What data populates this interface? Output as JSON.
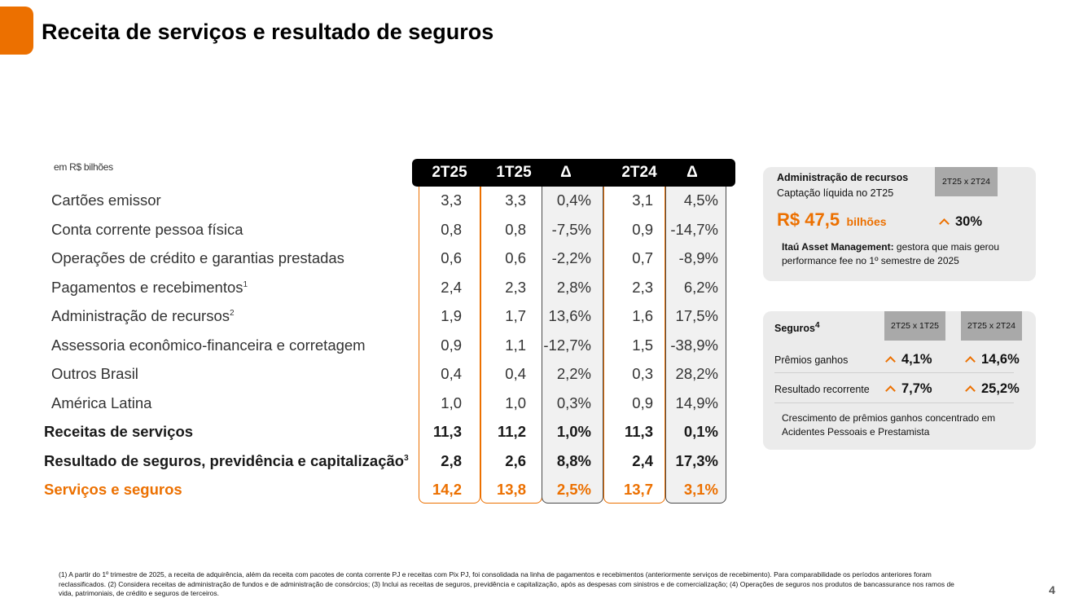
{
  "title": "Receita de serviços e resultado de seguros",
  "units": "em R$ bilhões",
  "columns": [
    "2T25",
    "1T25",
    "Δ",
    "2T24",
    "Δ"
  ],
  "rows": [
    {
      "label": "Cartões emissor",
      "sup": "",
      "style": "normal",
      "values": [
        "3,3",
        "3,3",
        "0,4%",
        "3,1",
        "4,5%"
      ]
    },
    {
      "label": "Conta corrente pessoa física",
      "sup": "",
      "style": "normal",
      "values": [
        "0,8",
        "0,8",
        "-7,5%",
        "0,9",
        "-14,7%"
      ]
    },
    {
      "label": "Operações de crédito e garantias prestadas",
      "sup": "",
      "style": "normal",
      "values": [
        "0,6",
        "0,6",
        "-2,2%",
        "0,7",
        "-8,9%"
      ]
    },
    {
      "label": "Pagamentos e recebimentos",
      "sup": "1",
      "style": "normal",
      "values": [
        "2,4",
        "2,3",
        "2,8%",
        "2,3",
        "6,2%"
      ]
    },
    {
      "label": "Administração de recursos",
      "sup": "2",
      "style": "normal",
      "values": [
        "1,9",
        "1,7",
        "13,6%",
        "1,6",
        "17,5%"
      ]
    },
    {
      "label": "Assessoria econômico-financeira e corretagem",
      "sup": "",
      "style": "normal",
      "values": [
        "0,9",
        "1,1",
        "-12,7%",
        "1,5",
        "-38,9%"
      ]
    },
    {
      "label": "Outros Brasil",
      "sup": "",
      "style": "normal",
      "values": [
        "0,4",
        "0,4",
        "2,2%",
        "0,3",
        "28,2%"
      ]
    },
    {
      "label": "América Latina",
      "sup": "",
      "style": "normal",
      "values": [
        "1,0",
        "1,0",
        "0,3%",
        "0,9",
        "14,9%"
      ]
    },
    {
      "label": "Receitas de serviços",
      "sup": "",
      "style": "bold",
      "values": [
        "11,3",
        "11,2",
        "1,0%",
        "11,3",
        "0,1%"
      ]
    },
    {
      "label": "Resultado de seguros, previdência e capitalização",
      "sup": "3",
      "style": "bold",
      "values": [
        "2,8",
        "2,6",
        "8,8%",
        "2,4",
        "17,3%"
      ]
    },
    {
      "label": "Serviços e seguros",
      "sup": "",
      "style": "orange",
      "values": [
        "14,2",
        "13,8",
        "2,5%",
        "13,7",
        "3,1%"
      ]
    }
  ],
  "asset_card": {
    "heading": "Administração de recursos",
    "subheading": "Captação líquida no 2T25",
    "chip": "2T25 x 2T24",
    "amount": "R$ 47,5",
    "amount_unit": "bilhões",
    "growth": "30%",
    "note_bold": "Itaú Asset Management:",
    "note_rest": " gestora que mais gerou performance fee no 1º semestre de 2025"
  },
  "insurance_card": {
    "heading": "Seguros",
    "heading_sup": "4",
    "chip1": "2T25 x 1T25",
    "chip2": "2T25 x 2T24",
    "row1_label": "Prêmios ganhos",
    "row1_v1": "4,1%",
    "row1_v2": "14,6%",
    "row2_label": "Resultado recorrente",
    "row2_v1": "7,7%",
    "row2_v2": "25,2%",
    "note": "Crescimento de prêmios ganhos concentrado em Acidentes Pessoais e Prestamista"
  },
  "footnote": "(1) A partir do 1º trimestre de 2025, a receita de adquirência, além da receita com pacotes de conta corrente PJ e receitas com Pix PJ, foi consolidada na linha de pagamentos e recebimentos (anteriormente serviços de recebimento). Para comparabilidade os períodos anteriores foram reclassificados. (2) Considera receitas de administração de fundos e de administração de consórcios; (3) Inclui as receitas de seguros, previdência e capitalização, após as despesas com sinistros e de comercialização; (4) Operações de seguros nos produtos de bancassurance nos ramos de vida, patrimoniais, de crédito e seguros de terceiros.",
  "page_number": "4",
  "colors": {
    "accent": "#ec7000",
    "header": "#000000",
    "card": "#ebebeb",
    "chip": "#a9a9a9"
  }
}
